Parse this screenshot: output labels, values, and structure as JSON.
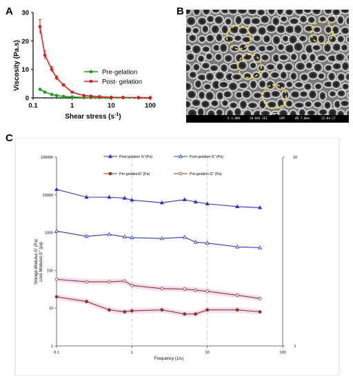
{
  "panels": {
    "a": "A",
    "b": "B",
    "c": "C"
  },
  "chart_data": [
    {
      "type": "line",
      "panel": "A",
      "xlabel": "Shear stress (s",
      "xlabel_sup": "-1",
      "xlabel_end": ")",
      "ylabel": "Viscosity (Pa.s)",
      "xscale": "log",
      "xlim": [
        0.1,
        100
      ],
      "ylim": [
        0,
        30
      ],
      "xticks": [
        "0.1",
        "1",
        "10",
        "100"
      ],
      "yticks": [
        "0",
        "10",
        "20",
        "30"
      ],
      "legend_position": "right",
      "series": [
        {
          "name": "Pre-gelation",
          "color": "#19a319",
          "x": [
            0.15,
            0.2,
            0.3,
            0.4,
            0.6,
            1.0,
            2,
            3,
            5,
            10,
            20,
            50,
            100
          ],
          "y": [
            3.0,
            2.0,
            1.2,
            0.8,
            0.5,
            0.3,
            0.15,
            0.1,
            0.08,
            0.05,
            0.04,
            0.03,
            0.02
          ]
        },
        {
          "name": "Post- gelation",
          "color": "#e02020",
          "x": [
            0.15,
            0.2,
            0.3,
            0.4,
            0.6,
            1.0,
            2,
            3,
            5,
            10,
            20,
            50,
            100
          ],
          "y": [
            25.0,
            15.0,
            10.0,
            7.0,
            4.5,
            2.0,
            0.8,
            0.6,
            0.4,
            0.2,
            0.15,
            0.1,
            0.08
          ],
          "err": [
            2.5,
            1.5,
            1.0,
            0.8,
            0.5,
            0.3,
            0.2,
            0.2,
            0.1,
            0.05,
            0.05,
            0.03,
            0.02
          ]
        }
      ]
    },
    {
      "type": "line",
      "panel": "C",
      "xlabel": "Frequency (1/s)",
      "ylabel_line1": "Storage Modulus G' (Pa)",
      "ylabel_line2": "Loss Modulus G\" (pa)",
      "xscale": "log",
      "yscale": "log",
      "xlim": [
        0.1,
        100
      ],
      "ylim": [
        1,
        100000
      ],
      "xticks": [
        "0.1",
        "1",
        "10",
        "100"
      ],
      "yticks": [
        "1",
        "10",
        "100",
        "1000",
        "10000",
        "100000"
      ],
      "right_axis_ticks": [
        "1",
        "10"
      ],
      "legend_position": "top",
      "x": [
        0.1,
        0.25,
        0.5,
        0.8,
        1.0,
        2.5,
        5,
        7,
        10,
        25,
        50
      ],
      "series": [
        {
          "name": "Post-gelation G' (Pa)",
          "color": "#2b35d6",
          "marker": "filled-triangle",
          "values": [
            14000,
            8700,
            8700,
            8200,
            7300,
            6200,
            7500,
            6500,
            5800,
            4900,
            4600
          ]
        },
        {
          "name": "Post-gelation G\" (Pa)",
          "color": "#2b35d6",
          "marker": "open-triangle",
          "values": [
            1100,
            800,
            900,
            770,
            740,
            700,
            760,
            560,
            530,
            420,
            400
          ]
        },
        {
          "name": "Pre-gelationG' (Pa)",
          "color": "#8a3a18",
          "marker": "filled-circle",
          "values": [
            20,
            15,
            9,
            8,
            8.5,
            9,
            7,
            7,
            9,
            9,
            8
          ]
        },
        {
          "name": "Pre-gelation G\" (Pa)",
          "color": "#8a3a18",
          "marker": "open-circle",
          "values": [
            58,
            50,
            50,
            52,
            40,
            33,
            32,
            30,
            28,
            22,
            18
          ]
        }
      ]
    }
  ],
  "sem": {
    "scale_label": "1um",
    "info": [
      "X 3,000",
      "10.0kV SEI",
      "SEM",
      "WD 7.0mm",
      "12:04:17"
    ]
  }
}
